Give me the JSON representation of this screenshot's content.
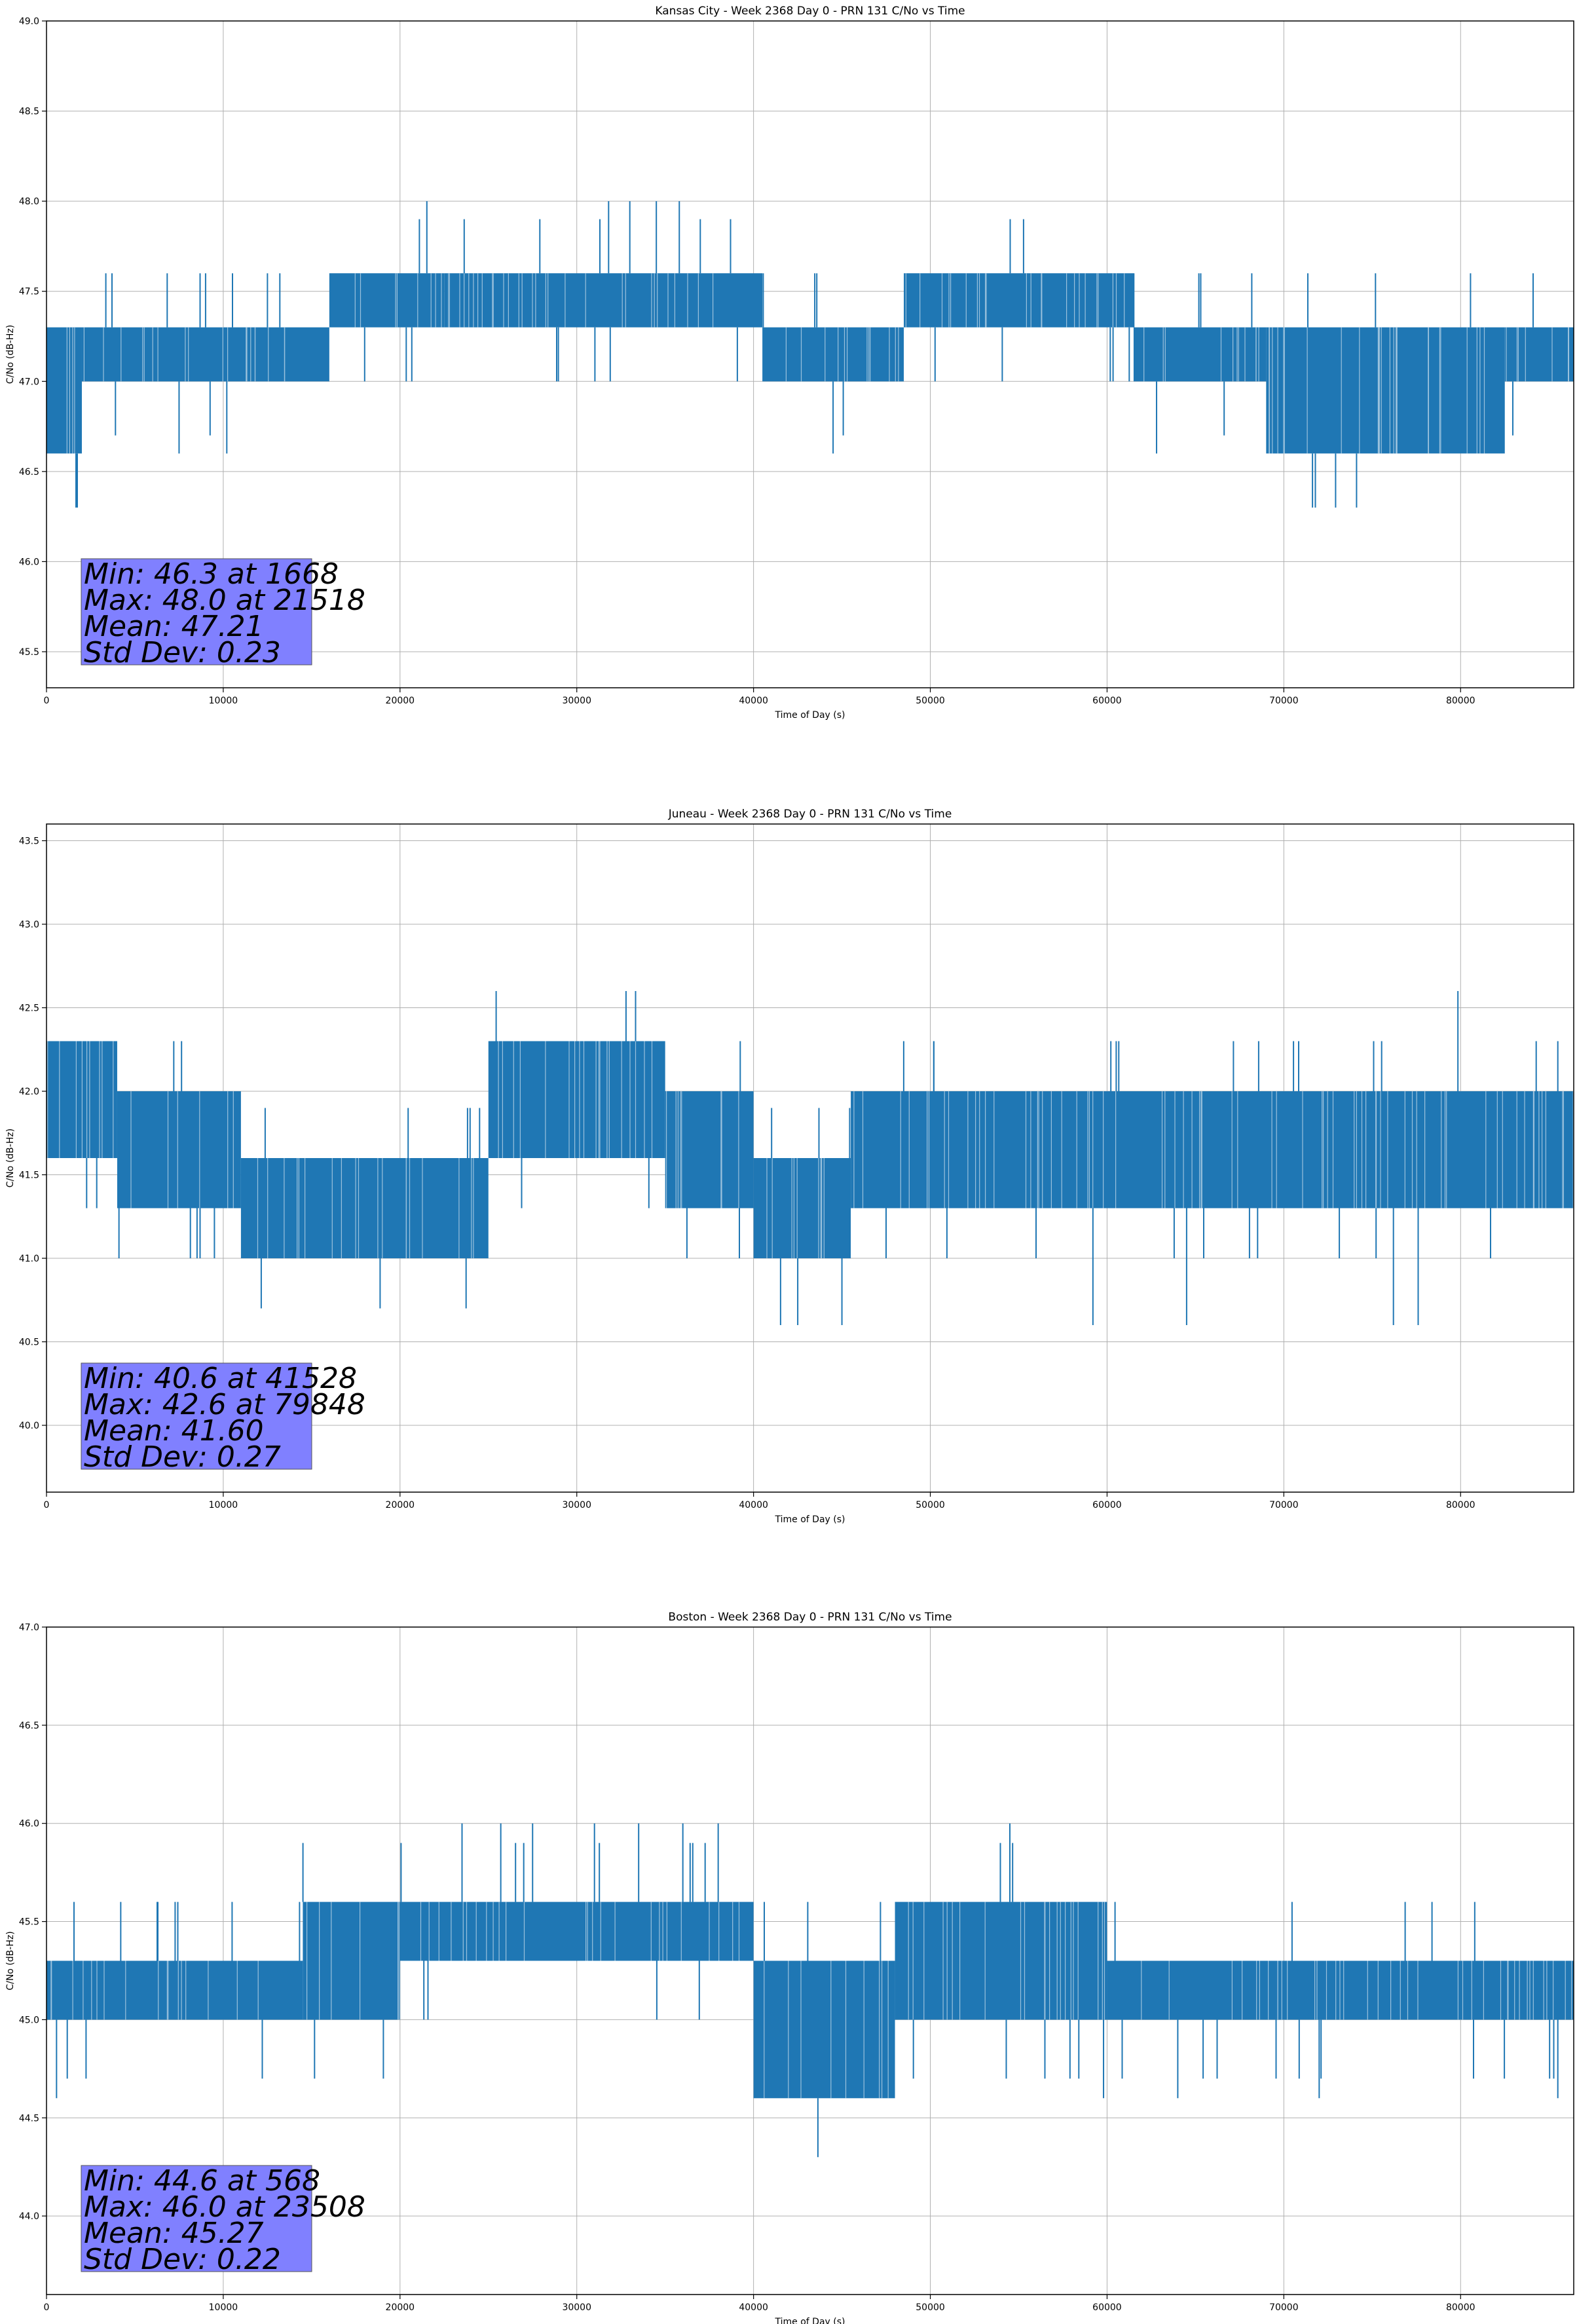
{
  "colors": {
    "series": "#1f77b4",
    "grid": "#b0b0b0",
    "stats_box": "#8080ff"
  },
  "chart_data": [
    {
      "type": "line",
      "title": "Kansas City - Week 2368 Day 0 - PRN 131 C/No vs Time",
      "xlabel": "Time of Day (s)",
      "ylabel": "C/No (dB-Hz)",
      "xlim": [
        0,
        86400
      ],
      "ylim": [
        45.3,
        49.0
      ],
      "xticks": [
        0,
        10000,
        20000,
        30000,
        40000,
        50000,
        60000,
        70000,
        80000
      ],
      "yticks": [
        45.5,
        46.0,
        46.5,
        47.0,
        47.5,
        48.0,
        48.5,
        49.0
      ],
      "grid": true,
      "stats_box": {
        "position": "bottom-left",
        "lines": [
          "Min: 46.3 at 1668",
          "Max: 48.0 at 21518",
          "Mean: 47.21",
          "Std Dev: 0.23"
        ]
      },
      "series": [
        {
          "name": "C/No",
          "segments": [
            {
              "x": [
                0,
                2000
              ],
              "min": 46.6,
              "max": 47.3
            },
            {
              "x": [
                2000,
                16000
              ],
              "min": 47.0,
              "max": 47.3
            },
            {
              "x": [
                16000,
                22500
              ],
              "min": 47.3,
              "max": 47.6
            },
            {
              "x": [
                22500,
                40500
              ],
              "min": 47.3,
              "max": 47.6
            },
            {
              "x": [
                40500,
                48500
              ],
              "min": 47.0,
              "max": 47.3
            },
            {
              "x": [
                48500,
                61500
              ],
              "min": 47.3,
              "max": 47.6
            },
            {
              "x": [
                61500,
                69000
              ],
              "min": 47.0,
              "max": 47.3
            },
            {
              "x": [
                69000,
                82500
              ],
              "min": 46.6,
              "max": 47.3
            },
            {
              "x": [
                82500,
                86400
              ],
              "min": 47.0,
              "max": 47.3
            }
          ],
          "spikes": [
            {
              "x": 1668,
              "y": 46.3
            },
            {
              "x": 7500,
              "y": 46.6
            },
            {
              "x": 9000,
              "y": 47.6
            },
            {
              "x": 10200,
              "y": 46.6
            },
            {
              "x": 12500,
              "y": 47.6
            },
            {
              "x": 21518,
              "y": 48.0
            },
            {
              "x": 31800,
              "y": 48.0
            },
            {
              "x": 33000,
              "y": 48.0
            },
            {
              "x": 34500,
              "y": 48.0
            },
            {
              "x": 35800,
              "y": 48.0
            },
            {
              "x": 44500,
              "y": 46.6
            },
            {
              "x": 62800,
              "y": 46.6
            },
            {
              "x": 65300,
              "y": 47.6
            },
            {
              "x": 72000,
              "y": 46.6
            }
          ]
        }
      ]
    },
    {
      "type": "line",
      "title": "Juneau - Week 2368 Day 0 - PRN 131 C/No vs Time",
      "xlabel": "Time of Day (s)",
      "ylabel": "C/No (dB-Hz)",
      "xlim": [
        0,
        86400
      ],
      "ylim": [
        39.6,
        43.6
      ],
      "xticks": [
        0,
        10000,
        20000,
        30000,
        40000,
        50000,
        60000,
        70000,
        80000
      ],
      "yticks": [
        40.0,
        40.5,
        41.0,
        41.5,
        42.0,
        42.5,
        43.0,
        43.5
      ],
      "grid": true,
      "stats_box": {
        "position": "bottom-left",
        "lines": [
          "Min: 40.6 at 41528",
          "Max: 42.6 at 79848",
          "Mean: 41.60",
          "Std Dev: 0.27"
        ]
      },
      "series": [
        {
          "name": "C/No",
          "segments": [
            {
              "x": [
                0,
                4000
              ],
              "min": 41.6,
              "max": 42.3
            },
            {
              "x": [
                4000,
                11000
              ],
              "min": 41.3,
              "max": 42.0
            },
            {
              "x": [
                11000,
                25000
              ],
              "min": 41.0,
              "max": 41.6
            },
            {
              "x": [
                25000,
                35000
              ],
              "min": 41.6,
              "max": 42.3
            },
            {
              "x": [
                35000,
                40000
              ],
              "min": 41.3,
              "max": 42.0
            },
            {
              "x": [
                40000,
                45500
              ],
              "min": 41.0,
              "max": 41.6
            },
            {
              "x": [
                45500,
                86400
              ],
              "min": 41.3,
              "max": 42.0
            }
          ],
          "spikes": [
            {
              "x": 4100,
              "y": 41.0
            },
            {
              "x": 7200,
              "y": 42.3
            },
            {
              "x": 9500,
              "y": 41.0
            },
            {
              "x": 20000,
              "y": 41.0
            },
            {
              "x": 29500,
              "y": 42.3
            },
            {
              "x": 41528,
              "y": 40.6
            },
            {
              "x": 42500,
              "y": 40.6
            },
            {
              "x": 45000,
              "y": 40.6
            },
            {
              "x": 50200,
              "y": 42.3
            },
            {
              "x": 59200,
              "y": 40.6
            },
            {
              "x": 64500,
              "y": 40.6
            },
            {
              "x": 76200,
              "y": 40.6
            },
            {
              "x": 77600,
              "y": 40.6
            },
            {
              "x": 79848,
              "y": 42.6
            },
            {
              "x": 85500,
              "y": 42.3
            }
          ]
        }
      ]
    },
    {
      "type": "line",
      "title": "Boston - Week 2368 Day 0 - PRN 131 C/No vs Time",
      "xlabel": "Time of Day (s)",
      "ylabel": "C/No (dB-Hz)",
      "xlim": [
        0,
        86400
      ],
      "ylim": [
        43.6,
        47.0
      ],
      "xticks": [
        0,
        10000,
        20000,
        30000,
        40000,
        50000,
        60000,
        70000,
        80000
      ],
      "yticks": [
        44.0,
        44.5,
        45.0,
        45.5,
        46.0,
        46.5,
        47.0
      ],
      "grid": true,
      "stats_box": {
        "position": "bottom-left",
        "lines": [
          "Min: 44.6 at 568",
          "Max: 46.0 at 23508",
          "Mean: 45.27",
          "Std Dev: 0.22"
        ]
      },
      "series": [
        {
          "name": "C/No",
          "segments": [
            {
              "x": [
                0,
                14500
              ],
              "min": 45.0,
              "max": 45.3
            },
            {
              "x": [
                14500,
                20000
              ],
              "min": 45.0,
              "max": 45.6
            },
            {
              "x": [
                20000,
                40000
              ],
              "min": 45.3,
              "max": 45.6
            },
            {
              "x": [
                40000,
                48000
              ],
              "min": 44.6,
              "max": 45.3
            },
            {
              "x": [
                48000,
                60000
              ],
              "min": 45.0,
              "max": 45.6
            },
            {
              "x": [
                60000,
                86400
              ],
              "min": 45.0,
              "max": 45.3
            }
          ],
          "spikes": [
            {
              "x": 568,
              "y": 44.6
            },
            {
              "x": 4200,
              "y": 45.6
            },
            {
              "x": 6300,
              "y": 45.6
            },
            {
              "x": 10500,
              "y": 45.6
            },
            {
              "x": 23508,
              "y": 46.0
            },
            {
              "x": 25700,
              "y": 46.0
            },
            {
              "x": 27500,
              "y": 46.0
            },
            {
              "x": 31000,
              "y": 46.0
            },
            {
              "x": 33500,
              "y": 46.0
            },
            {
              "x": 36000,
              "y": 46.0
            },
            {
              "x": 38000,
              "y": 46.0
            },
            {
              "x": 54500,
              "y": 46.0
            },
            {
              "x": 59800,
              "y": 44.6
            },
            {
              "x": 64000,
              "y": 44.6
            },
            {
              "x": 72000,
              "y": 44.6
            },
            {
              "x": 80800,
              "y": 45.6
            },
            {
              "x": 85500,
              "y": 44.6
            }
          ]
        }
      ]
    }
  ]
}
